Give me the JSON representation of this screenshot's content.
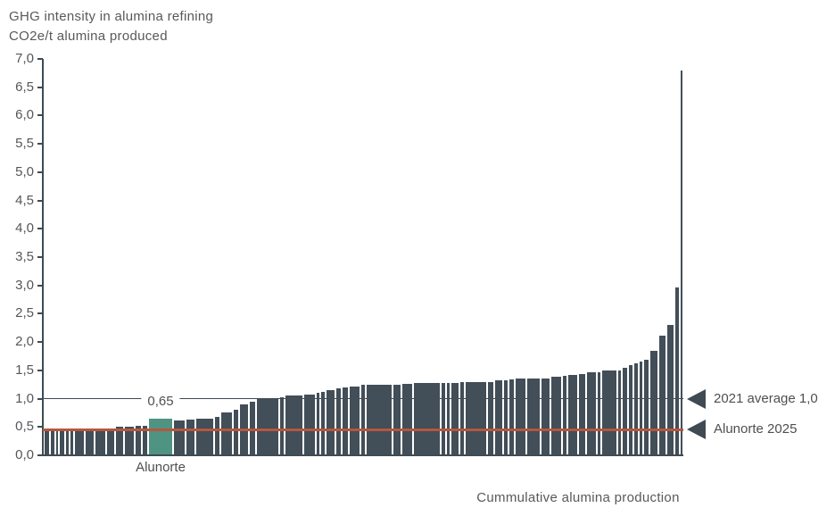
{
  "header": {
    "title_line1": "GHG intensity in alumina refining",
    "title_line2": "CO2e/t alumina produced"
  },
  "chart_data": {
    "type": "bar",
    "title": "GHG intensity in alumina refining",
    "ylabel": "CO2e/t alumina produced",
    "xlabel": "Cummulative alumina production",
    "ylim": [
      0,
      7.0
    ],
    "ytick_step": 0.5,
    "ytick_labels": [
      "7,0",
      "6,5",
      "6,0",
      "5,5",
      "5,0",
      "4,5",
      "4,0",
      "3,5",
      "3,0",
      "2,5",
      "2,0",
      "1,5",
      "1,0",
      "0,5",
      "0,0"
    ],
    "grid": false,
    "legend": "none",
    "bar_color": "#424e58",
    "axis_color": "#3f4a54",
    "bars": [
      [
        5,
        0.42
      ],
      [
        4,
        0.42
      ],
      [
        3,
        0.43
      ],
      [
        5,
        0.44
      ],
      [
        3,
        0.44
      ],
      [
        3,
        0.45
      ],
      [
        11,
        0.46
      ],
      [
        9,
        0.47
      ],
      [
        12,
        0.47
      ],
      [
        9,
        0.48
      ],
      [
        8,
        0.5
      ],
      [
        10,
        0.5
      ],
      [
        7,
        0.52
      ],
      [
        5,
        0.52
      ],
      [
        28,
        0.65
      ],
      [
        12,
        0.62
      ],
      [
        10,
        0.63
      ],
      [
        20,
        0.65
      ],
      [
        5,
        0.68
      ],
      [
        13,
        0.75
      ],
      [
        5,
        0.8
      ],
      [
        10,
        0.9
      ],
      [
        6,
        0.95
      ],
      [
        25,
        1.0
      ],
      [
        5,
        1.02
      ],
      [
        20,
        1.05
      ],
      [
        12,
        1.08
      ],
      [
        4,
        1.1
      ],
      [
        4,
        1.12
      ],
      [
        9,
        1.15
      ],
      [
        6,
        1.18
      ],
      [
        6,
        1.2
      ],
      [
        12,
        1.22
      ],
      [
        4,
        1.24
      ],
      [
        30,
        1.25
      ],
      [
        8,
        1.25
      ],
      [
        12,
        1.26
      ],
      [
        30,
        1.27
      ],
      [
        4,
        1.27
      ],
      [
        4,
        1.28
      ],
      [
        8,
        1.28
      ],
      [
        4,
        1.29
      ],
      [
        25,
        1.3
      ],
      [
        6,
        1.3
      ],
      [
        8,
        1.32
      ],
      [
        5,
        1.33
      ],
      [
        5,
        1.34
      ],
      [
        12,
        1.35
      ],
      [
        14,
        1.35
      ],
      [
        10,
        1.36
      ],
      [
        12,
        1.38
      ],
      [
        4,
        1.4
      ],
      [
        10,
        1.42
      ],
      [
        8,
        1.44
      ],
      [
        10,
        1.46
      ],
      [
        4,
        1.47
      ],
      [
        16,
        1.5
      ],
      [
        4,
        1.5
      ],
      [
        5,
        1.55
      ],
      [
        4,
        1.6
      ],
      [
        4,
        1.63
      ],
      [
        4,
        1.65
      ],
      [
        5,
        1.68
      ],
      [
        8,
        1.85
      ],
      [
        8,
        2.12
      ],
      [
        7,
        2.3
      ],
      [
        4,
        2.97
      ],
      [
        3,
        6.8
      ]
    ],
    "alunorte_index": 14,
    "highlight": {
      "label": "Alunorte",
      "value": 0.65,
      "value_label": "0,65",
      "color": "#4f9382"
    },
    "reference_lines": [
      {
        "id": "average-2021",
        "label": "2021 average 1,0",
        "value": 1.0,
        "color": "#3f4a54",
        "thickness": 1.5,
        "layer": "behind"
      },
      {
        "id": "alunorte-2025",
        "label": "Alunorte 2025",
        "value": 0.45,
        "color": "#b5573e",
        "thickness": 3,
        "layer": "front"
      }
    ],
    "arrow_color": "#3f4a54"
  }
}
